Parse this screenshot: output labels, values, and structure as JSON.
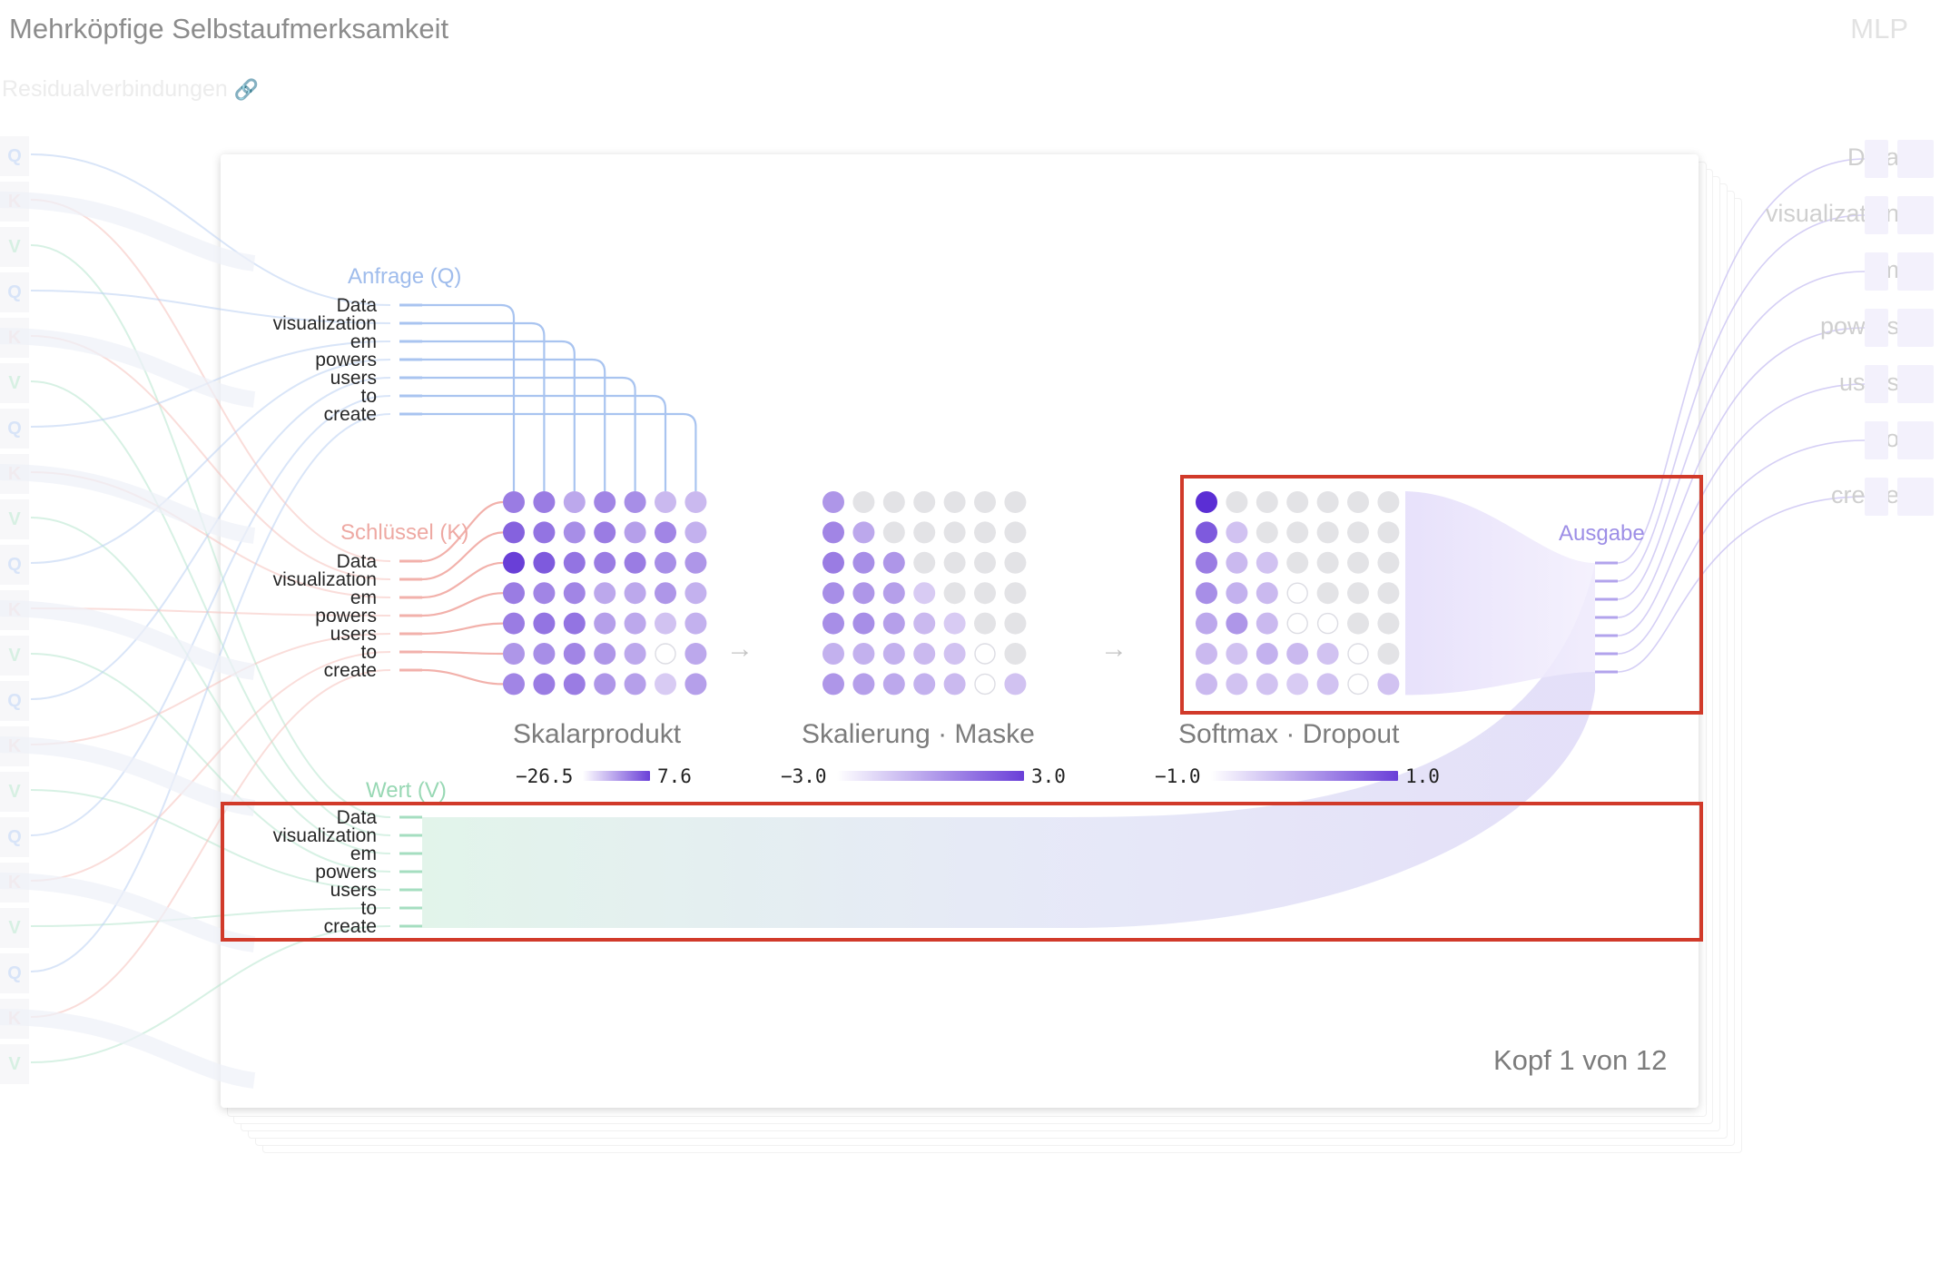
{
  "header": {
    "title": "Mehrköpfige Selbstaufmerksamkeit",
    "next_stage": "MLP",
    "residual_label": "Residualverbindungen",
    "residual_icon": "link-icon"
  },
  "attention": {
    "query_label": "Anfrage (Q)",
    "key_label": "Schlüssel (K)",
    "value_label": "Wert (V)",
    "output_label": "Ausgabe",
    "tokens": [
      "Data",
      "visualization",
      "em",
      "powers",
      "users",
      "to",
      "create"
    ],
    "head_counter": "Kopf 1 von 12"
  },
  "stages": [
    {
      "title": "Skalarprodukt",
      "min": "−26.5",
      "max": "7.6"
    },
    {
      "title": "Skalierung · Maske",
      "min": "−3.0",
      "max": "3.0"
    },
    {
      "title": "Softmax · Dropout",
      "min": "−1.0",
      "max": "1.0"
    }
  ],
  "matrices": {
    "dot_product": [
      [
        0.55,
        0.55,
        0.3,
        0.5,
        0.45,
        0.2,
        0.2
      ],
      [
        0.7,
        0.6,
        0.45,
        0.55,
        0.35,
        0.5,
        0.25
      ],
      [
        0.9,
        0.75,
        0.6,
        0.55,
        0.55,
        0.45,
        0.4
      ],
      [
        0.55,
        0.5,
        0.5,
        0.3,
        0.3,
        0.4,
        0.25
      ],
      [
        0.55,
        0.6,
        0.6,
        0.35,
        0.3,
        0.15,
        0.25
      ],
      [
        0.4,
        0.45,
        0.5,
        0.4,
        0.3,
        -1,
        0.3
      ],
      [
        0.5,
        0.55,
        0.55,
        0.4,
        0.35,
        0.1,
        0.35
      ]
    ],
    "scaled_masked": [
      [
        0.4,
        0,
        0,
        0,
        0,
        0,
        0
      ],
      [
        0.5,
        0.3,
        0,
        0,
        0,
        0,
        0
      ],
      [
        0.55,
        0.45,
        0.4,
        0,
        0,
        0,
        0
      ],
      [
        0.45,
        0.4,
        0.35,
        0.1,
        0,
        0,
        0
      ],
      [
        0.45,
        0.45,
        0.35,
        0.2,
        0.1,
        0,
        0
      ],
      [
        0.25,
        0.25,
        0.25,
        0.2,
        0.15,
        -1,
        0
      ],
      [
        0.4,
        0.35,
        0.3,
        0.25,
        0.2,
        -0.5,
        0.15
      ]
    ],
    "softmax": [
      [
        1.0,
        0,
        0,
        0,
        0,
        0,
        0
      ],
      [
        0.75,
        0.15,
        0,
        0,
        0,
        0,
        0
      ],
      [
        0.55,
        0.2,
        0.15,
        0,
        0,
        0,
        0
      ],
      [
        0.45,
        0.25,
        0.2,
        -0.3,
        0,
        0,
        0
      ],
      [
        0.3,
        0.4,
        0.2,
        -0.4,
        -0.4,
        0,
        0
      ],
      [
        0.2,
        0.15,
        0.25,
        0.2,
        0.15,
        -0.8,
        0
      ],
      [
        0.2,
        0.15,
        0.15,
        0.1,
        0.15,
        -0.8,
        0.15
      ]
    ]
  },
  "left_qkv_chips": [
    "Q",
    "K",
    "V",
    "Q",
    "K",
    "V",
    "Q",
    "K",
    "V",
    "Q",
    "K",
    "V",
    "Q",
    "K",
    "V",
    "Q",
    "K",
    "V",
    "Q",
    "K",
    "V"
  ],
  "colors": {
    "query": "#a9c4f0",
    "key": "#f2b1ab",
    "value": "#a5dec0",
    "attention": "#6a3fd8",
    "highlight": "#d13a2a"
  }
}
